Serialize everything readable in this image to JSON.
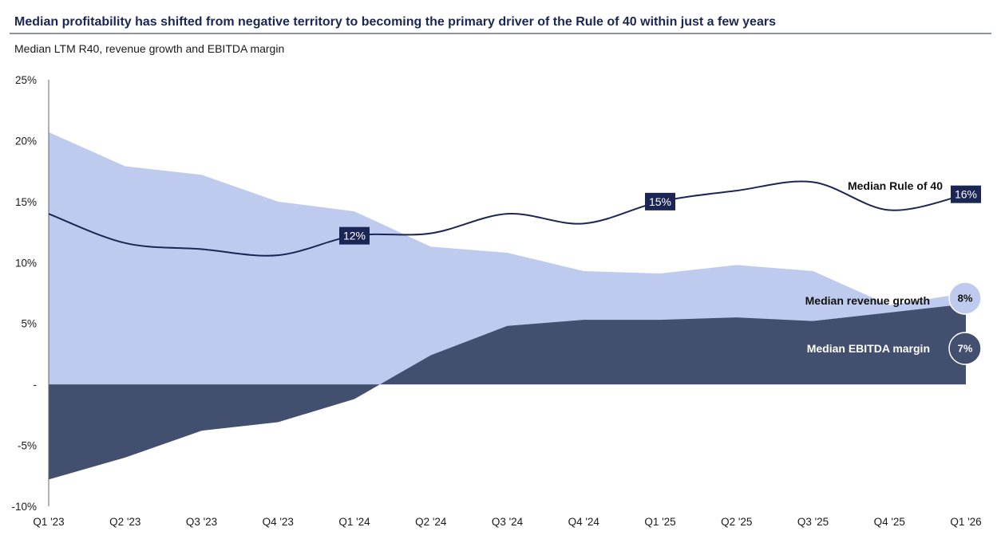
{
  "chart_data": {
    "type": "area",
    "title": "Median profitability has shifted from negative territory to becoming the primary driver of the Rule of 40 within just a few years",
    "subtitle": "Median LTM R40, revenue growth and EBITDA margin",
    "categories": [
      "Q1 '23",
      "Q2 '23",
      "Q3 '23",
      "Q4 '23",
      "Q1 '24",
      "Q2 '24",
      "Q3 '24",
      "Q4 '24",
      "Q1 '25",
      "Q2 '25",
      "Q3 '25",
      "Q4 '25",
      "Q1 '26"
    ],
    "y_ticks": [
      {
        "value": 25,
        "label": "25%"
      },
      {
        "value": 20,
        "label": "20%"
      },
      {
        "value": 15,
        "label": "15%"
      },
      {
        "value": 10,
        "label": "10%"
      },
      {
        "value": 5,
        "label": "5%"
      },
      {
        "value": 0,
        "label": "-"
      },
      {
        "value": -5,
        "label": "-5%"
      },
      {
        "value": -10,
        "label": "-10%"
      }
    ],
    "ylim": [
      -10,
      25
    ],
    "series": [
      {
        "name": "Median revenue growth",
        "kind": "area",
        "color": "#bfcbee",
        "values": [
          20.7,
          17.9,
          17.2,
          15.0,
          14.2,
          11.3,
          10.8,
          9.3,
          9.1,
          9.8,
          9.3,
          6.5,
          7.5
        ],
        "end_label": "8%"
      },
      {
        "name": "Median EBITDA margin",
        "kind": "area",
        "color": "#424f6f",
        "values": [
          -7.8,
          -6.0,
          -3.8,
          -3.1,
          -1.2,
          2.4,
          4.8,
          5.3,
          5.3,
          5.5,
          5.2,
          5.9,
          6.6
        ],
        "end_label": "7%"
      },
      {
        "name": "Median Rule of 40",
        "kind": "line",
        "color": "#1b2654",
        "values": [
          14.0,
          11.6,
          11.1,
          10.6,
          12.2,
          12.4,
          14.0,
          13.2,
          15.0,
          15.9,
          16.6,
          14.3,
          15.6
        ],
        "point_labels": [
          {
            "index": 4,
            "label": "12%"
          },
          {
            "index": 8,
            "label": "15%"
          },
          {
            "index": 12,
            "label": "16%"
          }
        ]
      }
    ],
    "legend": "inline-right",
    "grid": false
  }
}
